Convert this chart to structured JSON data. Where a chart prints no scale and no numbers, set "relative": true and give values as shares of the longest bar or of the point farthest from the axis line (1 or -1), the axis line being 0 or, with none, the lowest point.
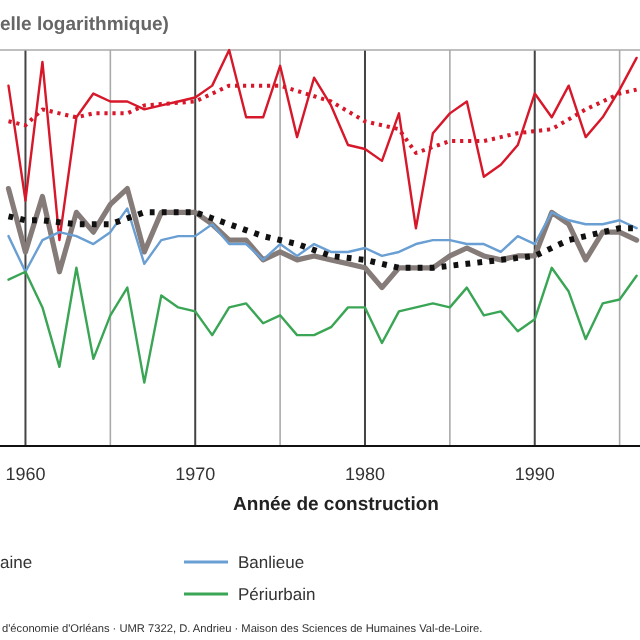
{
  "chart_data": {
    "type": "line",
    "title": "elle logarithmique)",
    "xlabel": "Année de construction",
    "relative": true,
    "grid": "x",
    "legend": "bottom",
    "annotations": [
      "aine",
      "d'économie d'Orléans · UMR 7322,  D. Andrieu · Maison des Sciences de Humaines Val-de-Loire."
    ],
    "xlim": [
      1958.5,
      1996.2
    ],
    "xticks": [
      1960,
      {
        "value": 1965,
        "label": null
      },
      1970,
      {
        "value": 1975,
        "label": null
      },
      1980,
      {
        "value": 1985,
        "label": null
      },
      1990,
      {
        "value": 1995,
        "label": null
      }
    ],
    "x": [
      1959,
      1960,
      1961,
      1962,
      1963,
      1964,
      1965,
      1966,
      1967,
      1968,
      1969,
      1970,
      1971,
      1972,
      1973,
      1974,
      1975,
      1976,
      1977,
      1978,
      1979,
      1980,
      1981,
      1982,
      1983,
      1984,
      1985,
      1986,
      1987,
      1988,
      1989,
      1990,
      1991,
      1992,
      1993,
      1994,
      1995,
      1996
    ],
    "series": [
      {
        "color": "#d7182a",
        "values": [
          0.91,
          0.62,
          0.97,
          0.52,
          0.83,
          0.89,
          0.87,
          0.87,
          0.85,
          0.86,
          0.87,
          0.88,
          0.91,
          1,
          0.83,
          0.83,
          0.96,
          0.78,
          0.93,
          0.86,
          0.76,
          0.75,
          0.72,
          0.84,
          0.55,
          0.79,
          0.84,
          0.87,
          0.68,
          0.71,
          0.76,
          0.89,
          0.83,
          0.91,
          0.78,
          0.83,
          0.9,
          0.98
        ]
      },
      {
        "color": "#d7182a",
        "line_style": "dotted",
        "x": [
          1959,
          1960,
          1961,
          1963,
          1964,
          1966,
          1967,
          1970,
          1972,
          1975,
          1978,
          1980,
          1982,
          1983,
          1985,
          1987,
          1989,
          1991,
          1993,
          1995,
          1996
        ],
        "values": [
          0.82,
          0.81,
          0.85,
          0.83,
          0.84,
          0.84,
          0.86,
          0.87,
          0.91,
          0.91,
          0.87,
          0.82,
          0.8,
          0.74,
          0.77,
          0.77,
          0.79,
          0.8,
          0.85,
          0.89,
          0.9
        ]
      },
      {
        "color": "#857b78",
        "values": [
          0.65,
          0.49,
          0.63,
          0.44,
          0.59,
          0.54,
          0.61,
          0.65,
          0.49,
          0.59,
          0.59,
          0.59,
          0.56,
          0.52,
          0.52,
          0.47,
          0.49,
          0.47,
          0.48,
          0.47,
          0.46,
          0.45,
          0.4,
          0.45,
          0.45,
          0.45,
          0.48,
          0.5,
          0.48,
          0.47,
          0.48,
          0.48,
          0.59,
          0.56,
          0.47,
          0.54,
          0.54,
          0.52
        ]
      },
      {
        "name": "Banlieue",
        "color": "#6a9fd4",
        "values": [
          0.53,
          0.44,
          0.52,
          0.54,
          0.53,
          0.51,
          0.54,
          0.6,
          0.46,
          0.52,
          0.53,
          0.53,
          0.56,
          0.51,
          0.51,
          0.47,
          0.51,
          0.48,
          0.51,
          0.49,
          0.49,
          0.5,
          0.48,
          0.49,
          0.51,
          0.52,
          0.52,
          0.51,
          0.51,
          0.49,
          0.53,
          0.51,
          0.59,
          0.57,
          0.56,
          0.56,
          0.57,
          0.55
        ]
      },
      {
        "name": "Périurbain",
        "color": "#3aa655",
        "values": [
          0.42,
          0.44,
          0.35,
          0.2,
          0.45,
          0.22,
          0.33,
          0.4,
          0.16,
          0.38,
          0.35,
          0.34,
          0.28,
          0.35,
          0.36,
          0.31,
          0.33,
          0.28,
          0.28,
          0.3,
          0.35,
          0.35,
          0.26,
          0.34,
          0.35,
          0.36,
          0.35,
          0.4,
          0.33,
          0.34,
          0.29,
          0.32,
          0.45,
          0.39,
          0.27,
          0.36,
          0.37,
          0.43
        ]
      },
      {
        "color": "#111111",
        "line_style": "dotted",
        "x": [
          1959,
          1960,
          1961,
          1963,
          1965,
          1967,
          1969,
          1970,
          1972,
          1974,
          1976,
          1978,
          1980,
          1982,
          1984,
          1986,
          1988,
          1990,
          1992,
          1994,
          1995,
          1996
        ],
        "values": [
          0.58,
          0.57,
          0.57,
          0.56,
          0.56,
          0.59,
          0.59,
          0.59,
          0.56,
          0.53,
          0.51,
          0.48,
          0.47,
          0.45,
          0.45,
          0.46,
          0.47,
          0.48,
          0.52,
          0.54,
          0.55,
          0.55
        ]
      }
    ]
  }
}
